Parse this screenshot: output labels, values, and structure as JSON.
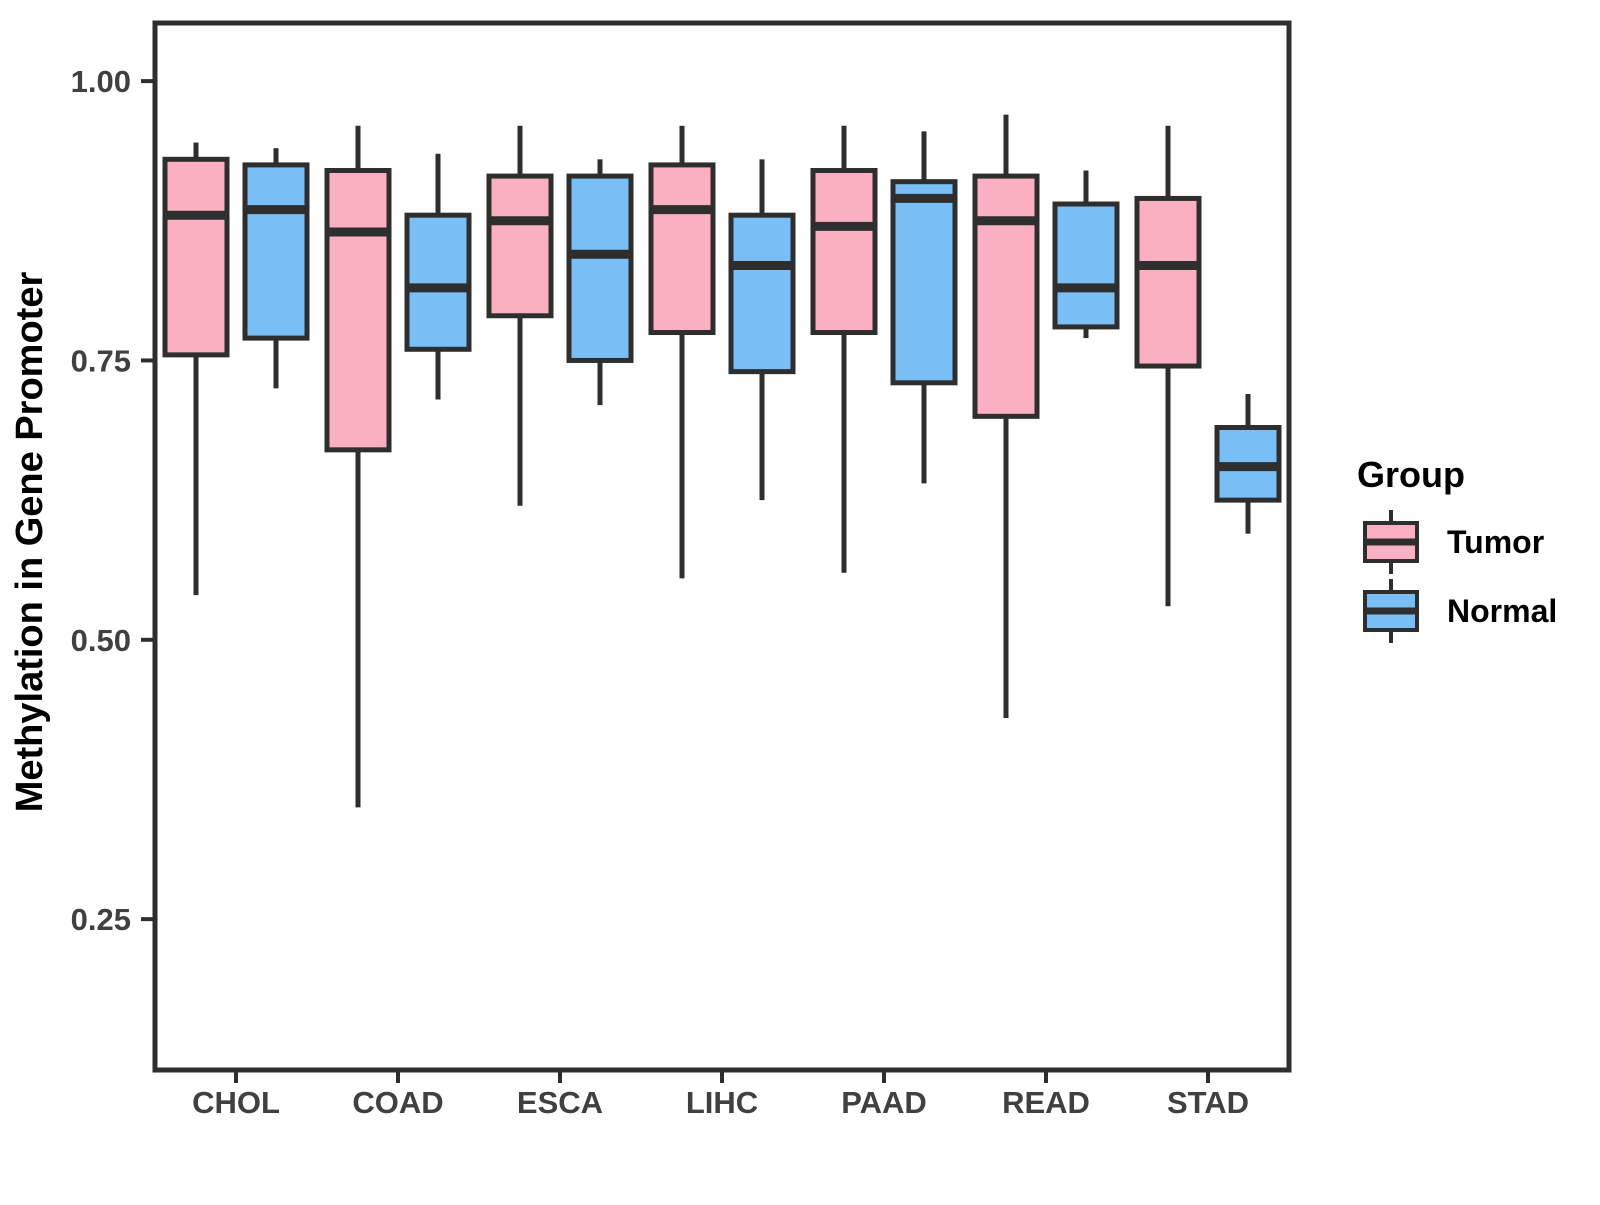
{
  "figure": {
    "y_axis": {
      "label": "Methylation in Gene Promoter",
      "tick_labels": [
        "1.00",
        "0.75",
        "0.50",
        "0.25"
      ],
      "tick_values": [
        1.0,
        0.75,
        0.5,
        0.25
      ]
    },
    "x_axis": {
      "categories": [
        "CHOL",
        "COAD",
        "ESCA",
        "LIHC",
        "PAAD",
        "READ",
        "STAD"
      ]
    },
    "legend": {
      "title": "Group",
      "entries": [
        {
          "label": "Tumor",
          "color": "#FAB0C0"
        },
        {
          "label": "Normal",
          "color": "#79BFF5"
        }
      ]
    },
    "colors": {
      "tumor_fill": "#FAB0C0",
      "normal_fill": "#79BFF5",
      "line_ink": "#2e2e2e",
      "tick_text": "#404040",
      "title_text": "#000000",
      "background": "#ffffff"
    }
  },
  "chart_data": {
    "type": "boxplot",
    "title": "",
    "xlabel": "",
    "ylabel": "Methylation in Gene Promoter",
    "categories": [
      "CHOL",
      "COAD",
      "ESCA",
      "LIHC",
      "PAAD",
      "READ",
      "STAD"
    ],
    "groups": [
      "Tumor",
      "Normal"
    ],
    "ylim": [
      0.115,
      1.052
    ],
    "yticks": [
      1.0,
      0.75,
      0.5,
      0.25
    ],
    "ytick_labels": [
      "1.00",
      "0.75",
      "0.50",
      "0.25"
    ],
    "grid": false,
    "legend_position": "right",
    "series": [
      {
        "name": "Tumor",
        "color": "#FAB0C0",
        "stats": [
          {
            "category": "CHOL",
            "min": 0.54,
            "q1": 0.755,
            "median": 0.88,
            "q3": 0.93,
            "max": 0.945
          },
          {
            "category": "COAD",
            "min": 0.35,
            "q1": 0.67,
            "median": 0.865,
            "q3": 0.92,
            "max": 0.96
          },
          {
            "category": "ESCA",
            "min": 0.62,
            "q1": 0.79,
            "median": 0.875,
            "q3": 0.915,
            "max": 0.96
          },
          {
            "category": "LIHC",
            "min": 0.555,
            "q1": 0.775,
            "median": 0.885,
            "q3": 0.925,
            "max": 0.96
          },
          {
            "category": "PAAD",
            "min": 0.56,
            "q1": 0.775,
            "median": 0.87,
            "q3": 0.92,
            "max": 0.96
          },
          {
            "category": "READ",
            "min": 0.43,
            "q1": 0.7,
            "median": 0.875,
            "q3": 0.915,
            "max": 0.97
          },
          {
            "category": "STAD",
            "min": 0.53,
            "q1": 0.745,
            "median": 0.835,
            "q3": 0.895,
            "max": 0.96
          }
        ]
      },
      {
        "name": "Normal",
        "color": "#79BFF5",
        "stats": [
          {
            "category": "CHOL",
            "min": 0.725,
            "q1": 0.77,
            "median": 0.885,
            "q3": 0.925,
            "max": 0.94
          },
          {
            "category": "COAD",
            "min": 0.715,
            "q1": 0.76,
            "median": 0.815,
            "q3": 0.88,
            "max": 0.935
          },
          {
            "category": "ESCA",
            "min": 0.71,
            "q1": 0.75,
            "median": 0.845,
            "q3": 0.915,
            "max": 0.93
          },
          {
            "category": "LIHC",
            "min": 0.625,
            "q1": 0.74,
            "median": 0.835,
            "q3": 0.88,
            "max": 0.93
          },
          {
            "category": "PAAD",
            "min": 0.64,
            "q1": 0.73,
            "median": 0.895,
            "q3": 0.91,
            "max": 0.955
          },
          {
            "category": "READ",
            "min": 0.77,
            "q1": 0.78,
            "median": 0.815,
            "q3": 0.89,
            "max": 0.92
          },
          {
            "category": "STAD",
            "min": 0.595,
            "q1": 0.625,
            "median": 0.655,
            "q3": 0.69,
            "max": 0.72
          }
        ]
      }
    ]
  }
}
